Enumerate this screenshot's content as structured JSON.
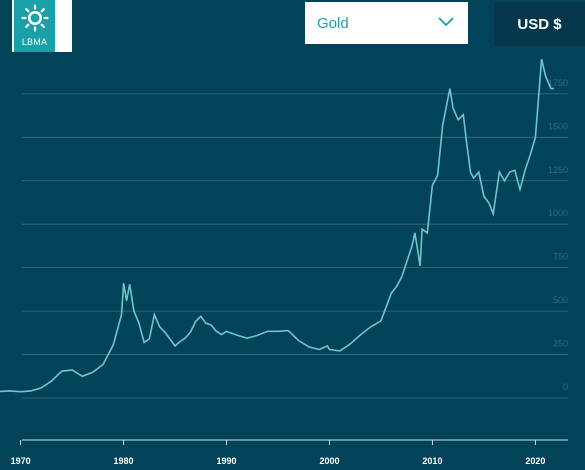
{
  "brand": {
    "logo_text": "LBMA"
  },
  "controls": {
    "metal_select_value": "Gold",
    "currency_label": "USD $"
  },
  "colors": {
    "background": "#03435a",
    "line": "#6cc7cc",
    "grid": "#3a6f82",
    "accent": "#1aa0a8"
  },
  "chart_data": {
    "type": "line",
    "title": "",
    "xlabel": "",
    "ylabel": "",
    "xlim": [
      1968,
      2022
    ],
    "ylim": [
      0,
      1750
    ],
    "x_ticks": [
      "1970",
      "1980",
      "1990",
      "2000",
      "2010",
      "2020"
    ],
    "y_ticks": [
      "0",
      "250",
      "500",
      "750",
      "1000",
      "1250",
      "1500",
      "1750"
    ],
    "grid": true,
    "series": [
      {
        "values": [
          [
            1968.0,
            38
          ],
          [
            1969.0,
            41
          ],
          [
            1970.0,
            36
          ],
          [
            1971.0,
            41
          ],
          [
            1972.0,
            58
          ],
          [
            1973.0,
            97
          ],
          [
            1974.0,
            154
          ],
          [
            1975.0,
            161
          ],
          [
            1976.0,
            125
          ],
          [
            1977.0,
            148
          ],
          [
            1978.0,
            193
          ],
          [
            1979.0,
            306
          ],
          [
            1979.8,
            480
          ],
          [
            1980.0,
            660
          ],
          [
            1980.3,
            560
          ],
          [
            1980.6,
            655
          ],
          [
            1981.0,
            500
          ],
          [
            1981.5,
            430
          ],
          [
            1982.0,
            320
          ],
          [
            1982.5,
            340
          ],
          [
            1983.0,
            480
          ],
          [
            1983.5,
            410
          ],
          [
            1984.0,
            380
          ],
          [
            1984.5,
            340
          ],
          [
            1985.0,
            300
          ],
          [
            1985.5,
            325
          ],
          [
            1986.0,
            345
          ],
          [
            1986.5,
            380
          ],
          [
            1987.0,
            440
          ],
          [
            1987.5,
            470
          ],
          [
            1988.0,
            430
          ],
          [
            1988.5,
            420
          ],
          [
            1989.0,
            385
          ],
          [
            1989.5,
            365
          ],
          [
            1990.0,
            383
          ],
          [
            1991.0,
            362
          ],
          [
            1992.0,
            344
          ],
          [
            1993.0,
            360
          ],
          [
            1994.0,
            384
          ],
          [
            1995.0,
            384
          ],
          [
            1996.0,
            388
          ],
          [
            1997.0,
            331
          ],
          [
            1998.0,
            294
          ],
          [
            1999.0,
            279
          ],
          [
            1999.8,
            300
          ],
          [
            2000.0,
            279
          ],
          [
            2001.0,
            271
          ],
          [
            2002.0,
            310
          ],
          [
            2003.0,
            363
          ],
          [
            2004.0,
            409
          ],
          [
            2005.0,
            444
          ],
          [
            2006.0,
            603
          ],
          [
            2006.5,
            640
          ],
          [
            2007.0,
            695
          ],
          [
            2008.0,
            872
          ],
          [
            2008.3,
            950
          ],
          [
            2008.8,
            760
          ],
          [
            2009.0,
            972
          ],
          [
            2009.5,
            950
          ],
          [
            2010.0,
            1225
          ],
          [
            2010.5,
            1280
          ],
          [
            2011.0,
            1571
          ],
          [
            2011.7,
            1780
          ],
          [
            2012.0,
            1669
          ],
          [
            2012.5,
            1600
          ],
          [
            2013.0,
            1630
          ],
          [
            2013.3,
            1480
          ],
          [
            2013.7,
            1300
          ],
          [
            2014.0,
            1266
          ],
          [
            2014.5,
            1300
          ],
          [
            2015.0,
            1160
          ],
          [
            2015.5,
            1120
          ],
          [
            2015.9,
            1060
          ],
          [
            2016.5,
            1300
          ],
          [
            2017.0,
            1250
          ],
          [
            2017.5,
            1300
          ],
          [
            2018.0,
            1310
          ],
          [
            2018.5,
            1200
          ],
          [
            2019.0,
            1310
          ],
          [
            2019.5,
            1400
          ],
          [
            2020.0,
            1500
          ],
          [
            2020.6,
            1950
          ],
          [
            2021.0,
            1850
          ],
          [
            2021.5,
            1780
          ],
          [
            2021.8,
            1780
          ]
        ]
      }
    ]
  }
}
